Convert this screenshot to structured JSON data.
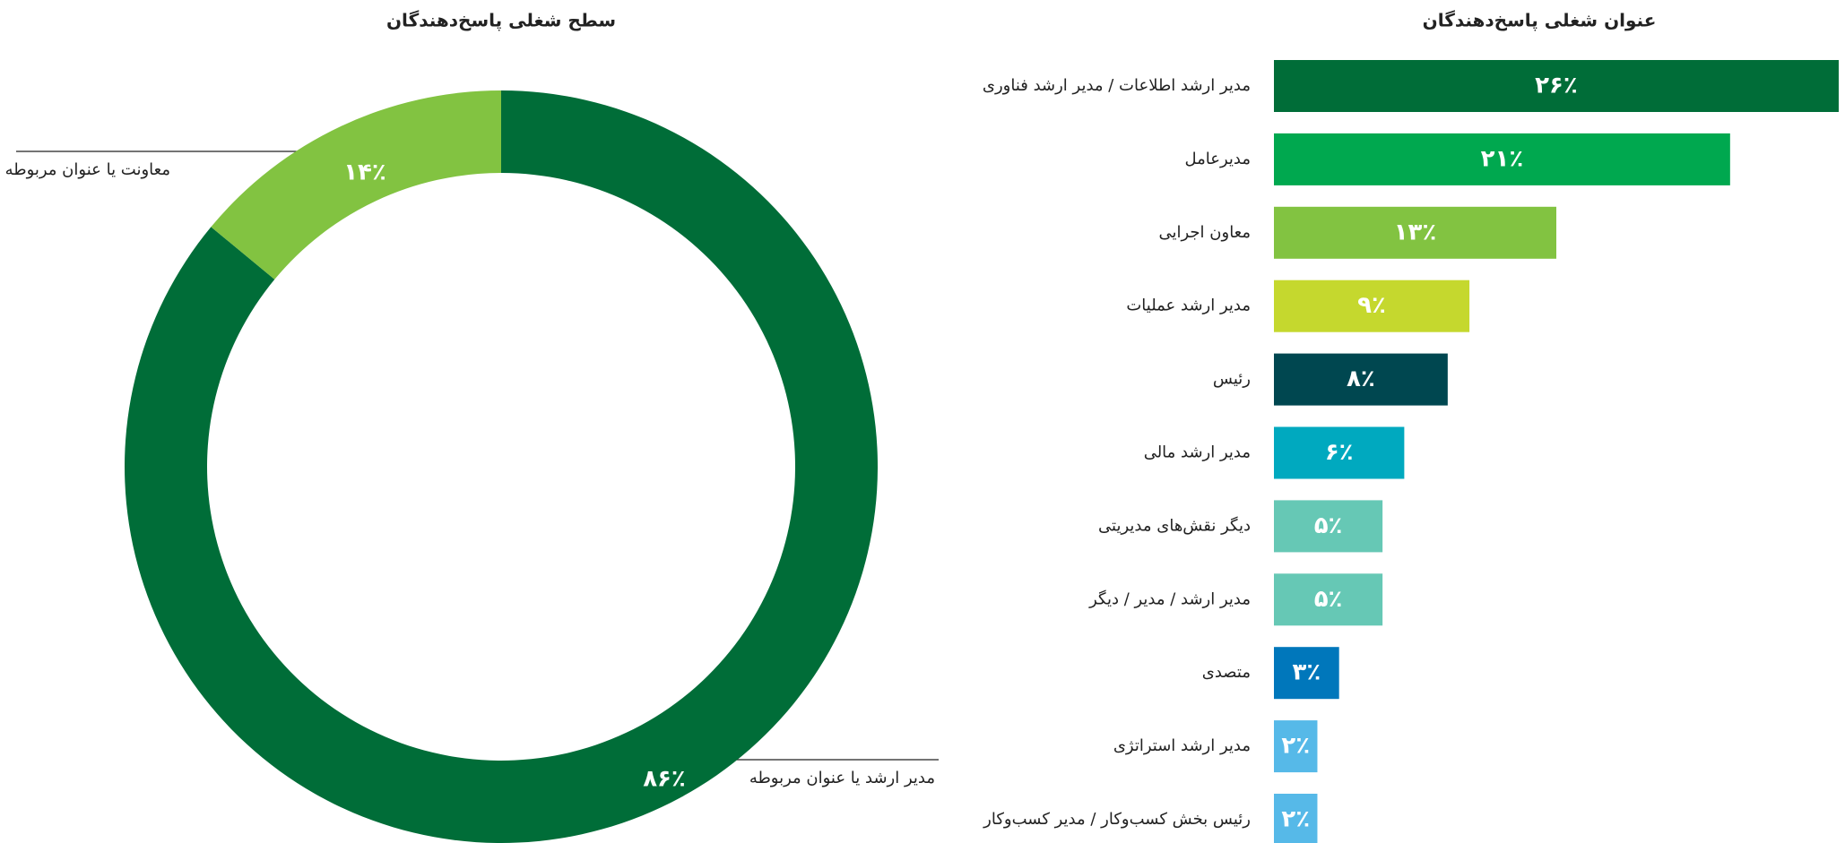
{
  "chart_data": [
    {
      "type": "pie",
      "title": "سطح شغلی پاسخ‌دهندگان",
      "categories": [
        "مدیر ارشد یا عنوان مربوطه",
        "معاونت یا عنوان مربوطه"
      ],
      "values": [
        86,
        14
      ],
      "value_labels": [
        "۸۶٪",
        "۱۴٪"
      ],
      "colors": [
        "#006d38",
        "#82c341"
      ]
    },
    {
      "type": "bar",
      "title": "عنوان شغلی پاسخ‌دهندگان",
      "categories": [
        "مدیر ارشد اطلاعات / مدیر ارشد فناوری",
        "مدیرعامل",
        "معاون اجرایی",
        "مدیر ارشد عملیات",
        "رئیس",
        "مدیر ارشد مالی",
        "دیگر نقش‌های مدیریتی",
        "مدیر ارشد / مدیر / دیگر",
        "متصدی",
        "مدیر ارشد استراتژی",
        "رئیس بخش کسب‌وکار / مدیر کسب‌وکار"
      ],
      "values": [
        26,
        21,
        13,
        9,
        8,
        6,
        5,
        5,
        3,
        2,
        2
      ],
      "value_labels": [
        "۲۶٪",
        "۲۱٪",
        "۱۳٪",
        "۹٪",
        "۸٪",
        "۶٪",
        "۵٪",
        "۵٪",
        "۳٪",
        "۲٪",
        "۲٪"
      ],
      "colors": [
        "#006d38",
        "#00a84f",
        "#82c341",
        "#c5d82e",
        "#004750",
        "#00a9bf",
        "#66c8b5",
        "#66c8b5",
        "#0077bb",
        "#56b9e8",
        "#56b9e8"
      ]
    }
  ]
}
